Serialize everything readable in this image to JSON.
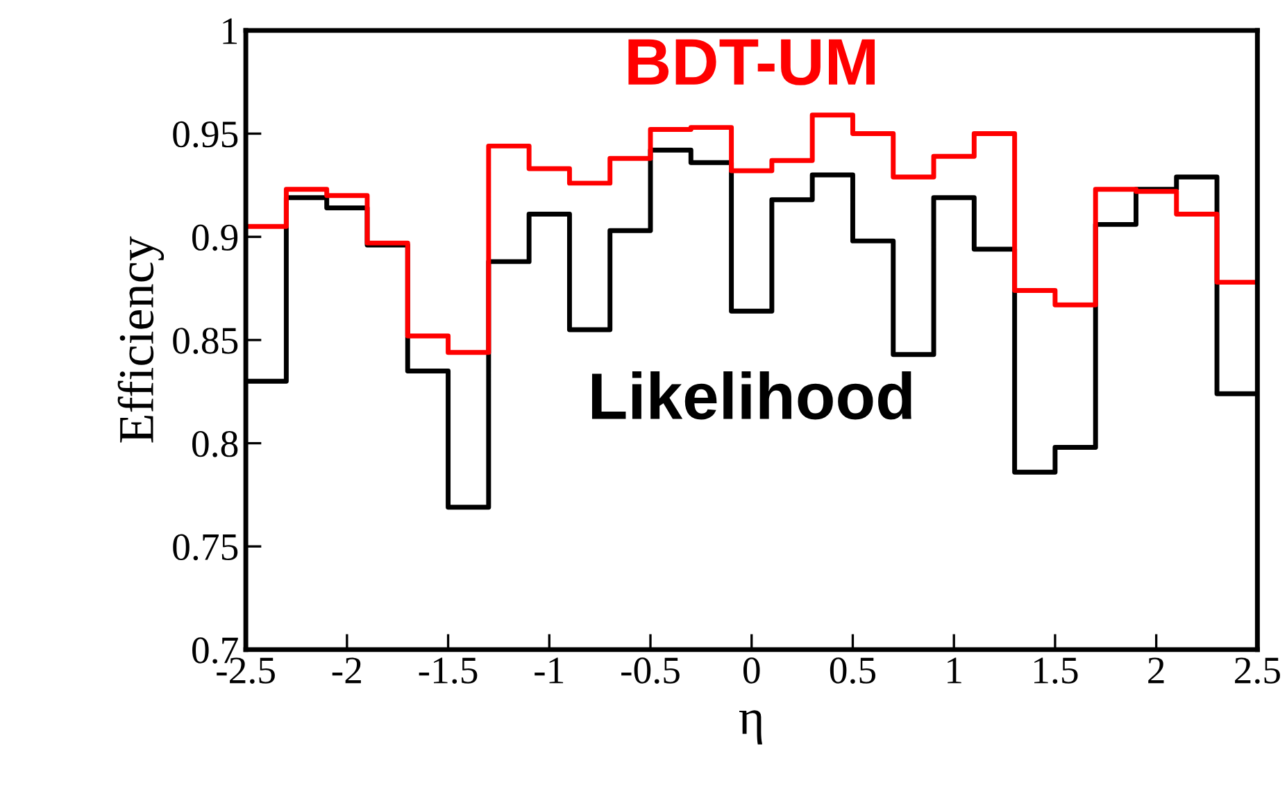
{
  "chart_data": {
    "type": "histogram",
    "xlabel": "η",
    "ylabel": "Efficiency",
    "bins": [
      -2.5,
      -2.3,
      -2.1,
      -1.9,
      -1.7,
      -1.5,
      -1.3,
      -1.1,
      -0.9,
      -0.7,
      -0.5,
      -0.3,
      -0.1,
      0.1,
      0.3,
      0.5,
      0.7,
      0.9,
      1.1,
      1.3,
      1.5,
      1.7,
      1.9,
      2.1,
      2.3,
      2.5
    ],
    "series": [
      {
        "name": "Likelihood",
        "color": "#000000",
        "values": [
          0.83,
          0.919,
          0.914,
          0.896,
          0.835,
          0.769,
          0.888,
          0.911,
          0.855,
          0.903,
          0.942,
          0.936,
          0.864,
          0.918,
          0.93,
          0.898,
          0.843,
          0.919,
          0.894,
          0.786,
          0.798,
          0.906,
          0.923,
          0.929,
          0.824
        ]
      },
      {
        "name": "BDT-UM",
        "color": "#ff0000",
        "values": [
          0.905,
          0.923,
          0.92,
          0.897,
          0.852,
          0.844,
          0.944,
          0.933,
          0.926,
          0.938,
          0.952,
          0.953,
          0.932,
          0.937,
          0.959,
          0.95,
          0.929,
          0.939,
          0.95,
          0.874,
          0.867,
          0.923,
          0.922,
          0.911,
          0.878
        ]
      }
    ],
    "xlim": [
      -2.5,
      2.5
    ],
    "ylim": [
      0.7,
      1.0
    ],
    "xticks": [
      -2.5,
      -2,
      -1.5,
      -1,
      -0.5,
      0,
      0.5,
      1,
      1.5,
      2,
      2.5
    ],
    "yticks": [
      0.7,
      0.75,
      0.8,
      0.85,
      0.9,
      0.95,
      1
    ],
    "grid": false,
    "legend": false
  }
}
